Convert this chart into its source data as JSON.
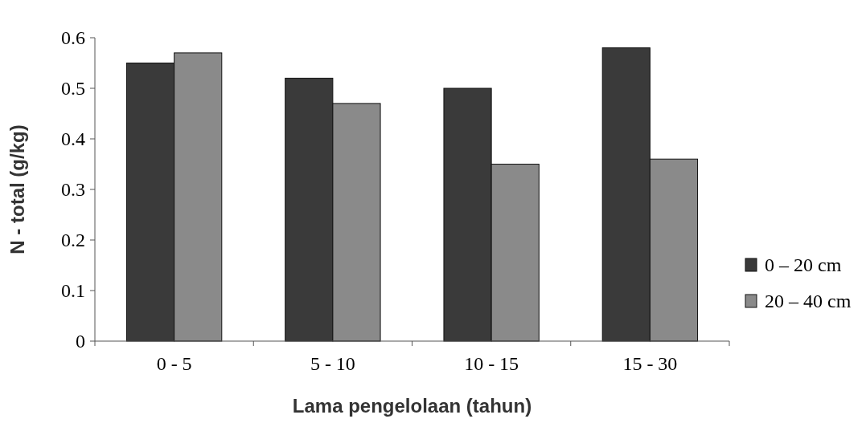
{
  "chart_data": {
    "type": "bar",
    "xlabel": "Lama pengelolaan (tahun)",
    "ylabel": "N - total (g/kg)",
    "categories": [
      "0 - 5",
      "5 - 10",
      "10 - 15",
      "15 - 30"
    ],
    "series": [
      {
        "name": "0 – 20 cm",
        "color": "#3a3a3a",
        "values": [
          0.55,
          0.52,
          0.5,
          0.58
        ]
      },
      {
        "name": "20 – 40 cm",
        "color": "#8a8a8a",
        "values": [
          0.57,
          0.47,
          0.35,
          0.36
        ]
      }
    ],
    "ylim": [
      0,
      0.6
    ],
    "yticks": [
      0,
      0.1,
      0.2,
      0.3,
      0.4,
      0.5,
      0.6
    ],
    "legend": "right",
    "grid": false
  }
}
